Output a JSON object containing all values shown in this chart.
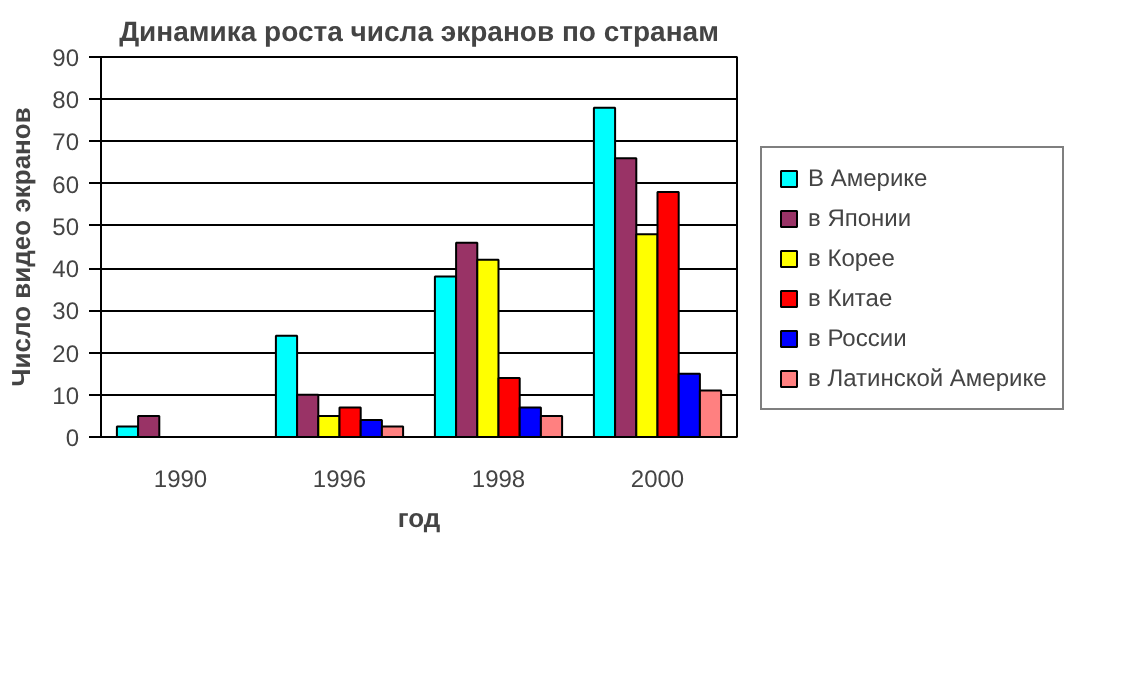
{
  "chart_data": {
    "type": "bar",
    "title": "Динамика роста числа экранов по странам",
    "xlabel": "год",
    "ylabel": "Число видео экранов",
    "categories": [
      "1990",
      "1996",
      "1998",
      "2000"
    ],
    "series": [
      {
        "name": "В Америке",
        "color": "#00ffff",
        "values": [
          2.5,
          24,
          38,
          78
        ]
      },
      {
        "name": "в Японии",
        "color": "#993366",
        "values": [
          5,
          10,
          46,
          66
        ]
      },
      {
        "name": "в Корее",
        "color": "#ffff00",
        "values": [
          null,
          5,
          42,
          48
        ]
      },
      {
        "name": "в Китае",
        "color": "#ff0000",
        "values": [
          null,
          7,
          14,
          58
        ]
      },
      {
        "name": "в России",
        "color": "#0000ff",
        "values": [
          null,
          4,
          7,
          15
        ]
      },
      {
        "name": "в Латинской Америке",
        "color": "#ff8080",
        "values": [
          null,
          2.5,
          5,
          11
        ]
      }
    ],
    "ylim": [
      0,
      90
    ],
    "yticks": [
      0,
      10,
      20,
      30,
      40,
      50,
      60,
      70,
      80,
      90
    ],
    "grid": "y",
    "legend": "right"
  }
}
